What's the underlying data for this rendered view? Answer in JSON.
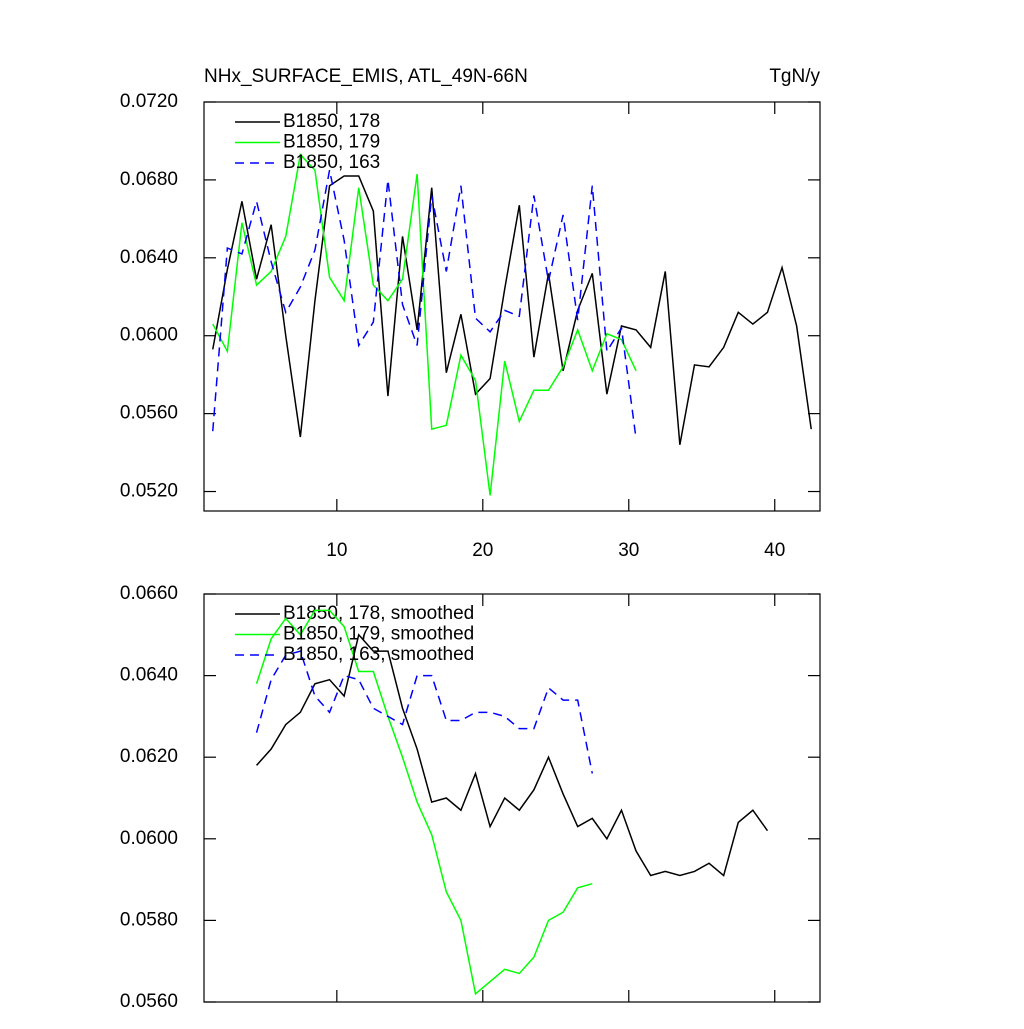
{
  "chart_data": [
    {
      "type": "line",
      "title": "NHx_SURFACE_EMIS, ATL_49N-66N",
      "units": "TgN/y",
      "xlim": [
        0.9,
        43.1
      ],
      "xticks": [
        10,
        20,
        30,
        40
      ],
      "ylim": [
        0.051,
        0.072
      ],
      "yticks": [
        {
          "value": 0.052,
          "label": "0.0520"
        },
        {
          "value": 0.056,
          "label": "0.0560"
        },
        {
          "value": 0.06,
          "label": "0.0600"
        },
        {
          "value": 0.064,
          "label": "0.0640"
        },
        {
          "value": 0.068,
          "label": "0.0680"
        },
        {
          "value": 0.072,
          "label": "0.0720"
        }
      ],
      "legend": "top-left",
      "series": [
        {
          "name": "B1850, 178",
          "color": "#000000",
          "dashed": false,
          "x": [
            1.5,
            2.5,
            3.5,
            4.5,
            5.5,
            6.5,
            7.5,
            8.5,
            9.5,
            10.5,
            11.5,
            12.5,
            13.5,
            14.5,
            15.5,
            16.5,
            17.5,
            18.5,
            19.5,
            20.5,
            21.5,
            22.5,
            23.5,
            24.5,
            25.5,
            26.5,
            27.5,
            28.5,
            29.5,
            30.5,
            31.5,
            32.5,
            33.5,
            34.5,
            35.5,
            36.5,
            37.5,
            38.5,
            39.5,
            40.5,
            41.5,
            42.5
          ],
          "values": [
            0.0593,
            0.0634,
            0.0669,
            0.0629,
            0.0657,
            0.06,
            0.0548,
            0.0618,
            0.0677,
            0.0682,
            0.0682,
            0.0664,
            0.0569,
            0.0651,
            0.0603,
            0.0676,
            0.0581,
            0.0611,
            0.057,
            0.0578,
            0.0624,
            0.0667,
            0.0589,
            0.0632,
            0.0582,
            0.0613,
            0.0632,
            0.057,
            0.0605,
            0.0603,
            0.0594,
            0.0633,
            0.0544,
            0.0585,
            0.0584,
            0.0594,
            0.0612,
            0.0606,
            0.0612,
            0.0635,
            0.0605,
            0.0552
          ]
        },
        {
          "name": "B1850, 179",
          "color": "#00ff00",
          "dashed": false,
          "x": [
            1.5,
            2.5,
            3.5,
            4.5,
            5.5,
            6.5,
            7.5,
            8.5,
            9.5,
            10.5,
            11.5,
            12.5,
            13.5,
            14.5,
            15.5,
            16.5,
            17.5,
            18.5,
            19.5,
            20.5,
            21.5,
            22.5,
            23.5,
            24.5,
            25.5,
            26.5,
            27.5,
            28.5,
            29.5,
            30.5
          ],
          "values": [
            0.0606,
            0.0592,
            0.0658,
            0.0626,
            0.0633,
            0.0651,
            0.0693,
            0.0685,
            0.063,
            0.0618,
            0.0676,
            0.0626,
            0.0618,
            0.0629,
            0.0683,
            0.0552,
            0.0554,
            0.059,
            0.0577,
            0.0518,
            0.0587,
            0.0556,
            0.0572,
            0.0572,
            0.0584,
            0.0603,
            0.0582,
            0.0601,
            0.0598,
            0.0582
          ]
        },
        {
          "name": "B1850, 163",
          "color": "#0000ff",
          "dashed": true,
          "x": [
            1.5,
            2.5,
            3.5,
            4.5,
            5.5,
            6.5,
            7.5,
            8.5,
            9.5,
            10.5,
            11.5,
            12.5,
            13.5,
            14.5,
            15.5,
            16.5,
            17.5,
            18.5,
            19.5,
            20.5,
            21.5,
            22.5,
            23.5,
            24.5,
            25.5,
            26.5,
            27.5,
            28.5,
            29.5,
            30.5
          ],
          "values": [
            0.0551,
            0.0645,
            0.0642,
            0.0669,
            0.0638,
            0.0612,
            0.0625,
            0.0644,
            0.0685,
            0.0649,
            0.0595,
            0.0607,
            0.068,
            0.0616,
            0.0595,
            0.0672,
            0.0633,
            0.0677,
            0.0609,
            0.0602,
            0.0613,
            0.061,
            0.0672,
            0.0628,
            0.0662,
            0.0608,
            0.0677,
            0.0592,
            0.0604,
            0.0547
          ]
        }
      ]
    },
    {
      "type": "line",
      "xlim": [
        0.9,
        43.1
      ],
      "xticks": [
        10,
        20,
        30,
        40
      ],
      "ylim": [
        0.056,
        0.066
      ],
      "yticks": [
        {
          "value": 0.056,
          "label": "0.0560"
        },
        {
          "value": 0.058,
          "label": "0.0580"
        },
        {
          "value": 0.06,
          "label": "0.0600"
        },
        {
          "value": 0.062,
          "label": "0.0620"
        },
        {
          "value": 0.064,
          "label": "0.0640"
        },
        {
          "value": 0.066,
          "label": "0.0660"
        }
      ],
      "legend": "top-left",
      "series": [
        {
          "name": "B1850, 178, smoothed",
          "color": "#000000",
          "dashed": false,
          "x": [
            4.5,
            5.5,
            6.5,
            7.5,
            8.5,
            9.5,
            10.5,
            11.5,
            12.5,
            13.5,
            14.5,
            15.5,
            16.5,
            17.5,
            18.5,
            19.5,
            20.5,
            21.5,
            22.5,
            23.5,
            24.5,
            25.5,
            26.5,
            27.5,
            28.5,
            29.5,
            30.5,
            31.5,
            32.5,
            33.5,
            34.5,
            35.5,
            36.5,
            37.5,
            38.5,
            39.5
          ],
          "values": [
            0.0618,
            0.0622,
            0.0628,
            0.0631,
            0.0638,
            0.0639,
            0.0635,
            0.065,
            0.0646,
            0.0646,
            0.0632,
            0.0622,
            0.0609,
            0.061,
            0.0607,
            0.0616,
            0.0603,
            0.061,
            0.0607,
            0.0612,
            0.062,
            0.0611,
            0.0603,
            0.0605,
            0.06,
            0.0607,
            0.0597,
            0.0591,
            0.0592,
            0.0591,
            0.0592,
            0.0594,
            0.0591,
            0.0604,
            0.0607,
            0.0602
          ]
        },
        {
          "name": "B1850, 179, smoothed",
          "color": "#00ff00",
          "dashed": false,
          "x": [
            4.5,
            5.5,
            6.5,
            7.5,
            8.5,
            9.5,
            10.5,
            11.5,
            12.5,
            13.5,
            14.5,
            15.5,
            16.5,
            17.5,
            18.5,
            19.5,
            20.5,
            21.5,
            22.5,
            23.5,
            24.5,
            25.5,
            26.5,
            27.5
          ],
          "values": [
            0.0638,
            0.0649,
            0.0654,
            0.065,
            0.0656,
            0.0656,
            0.0652,
            0.0641,
            0.0641,
            0.063,
            0.062,
            0.0609,
            0.0601,
            0.0587,
            0.058,
            0.0562,
            0.0565,
            0.0568,
            0.0567,
            0.0571,
            0.058,
            0.0582,
            0.0588,
            0.0589
          ]
        },
        {
          "name": "B1850, 163, smoothed",
          "color": "#0000ff",
          "dashed": true,
          "x": [
            4.5,
            5.5,
            6.5,
            7.5,
            8.5,
            9.5,
            10.5,
            11.5,
            12.5,
            13.5,
            14.5,
            15.5,
            16.5,
            17.5,
            18.5,
            19.5,
            20.5,
            21.5,
            22.5,
            23.5,
            24.5,
            25.5,
            26.5,
            27.5
          ],
          "values": [
            0.0626,
            0.0639,
            0.0645,
            0.0646,
            0.0635,
            0.0631,
            0.064,
            0.0639,
            0.0632,
            0.063,
            0.0628,
            0.064,
            0.064,
            0.0629,
            0.0629,
            0.0631,
            0.0631,
            0.063,
            0.0627,
            0.0627,
            0.0637,
            0.0634,
            0.0634,
            0.0616
          ]
        }
      ]
    }
  ]
}
